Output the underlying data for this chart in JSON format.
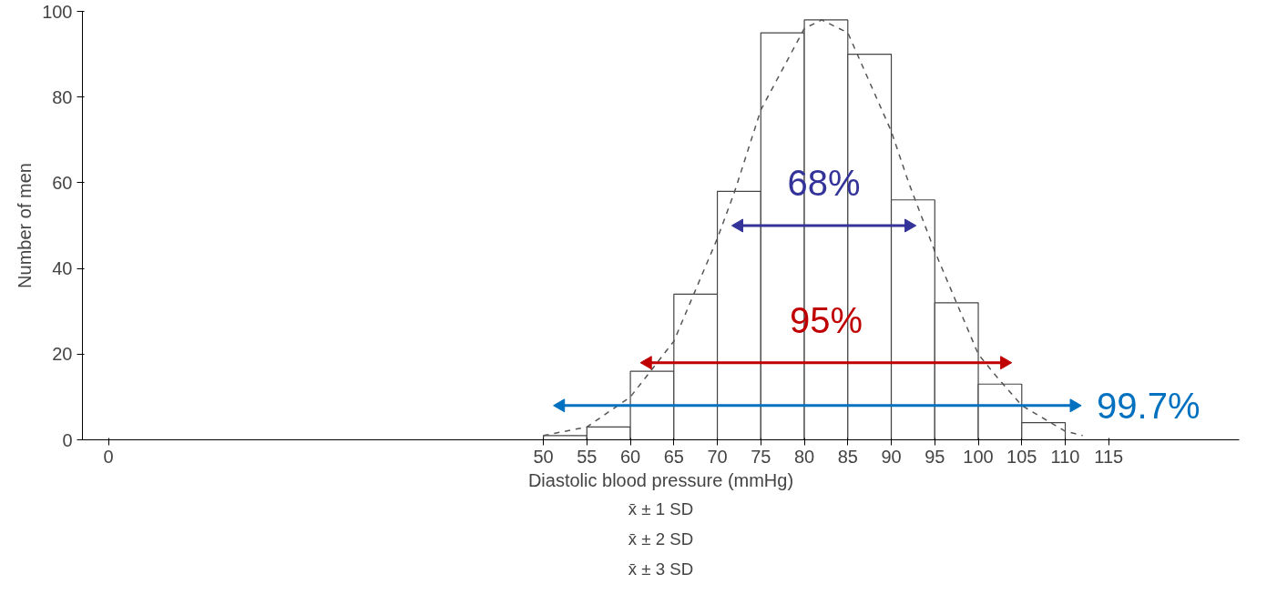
{
  "chart_data": {
    "type": "histogram",
    "xlabel": "Diastolic blood pressure (mmHg)",
    "ylabel": "Number of men",
    "bins": [
      50,
      55,
      60,
      65,
      70,
      75,
      80,
      85,
      90,
      95,
      100,
      105,
      110
    ],
    "values": [
      1,
      3,
      16,
      34,
      58,
      95,
      98,
      90,
      56,
      32,
      13,
      4
    ],
    "color": "#ffffff",
    "xlim": [
      -3,
      130
    ],
    "ylim": [
      0,
      100
    ],
    "xticks": [
      0,
      50,
      55,
      60,
      65,
      70,
      75,
      80,
      85,
      90,
      95,
      100,
      105,
      110,
      115
    ],
    "yticks": [
      0,
      20,
      40,
      60,
      80,
      100
    ],
    "grid": false,
    "series": [
      {
        "type": "line",
        "line_style": "dashed",
        "color": "#555555",
        "x": [
          50,
          55,
          60,
          65,
          70,
          72,
          75,
          80,
          82,
          85,
          90,
          92,
          95,
          100,
          102,
          105,
          110,
          112
        ],
        "values": [
          1,
          3,
          10,
          23,
          47,
          58,
          77,
          96,
          98,
          95,
          72,
          60,
          44,
          20,
          15,
          8,
          2,
          1
        ]
      },
      {
        "type": "line",
        "line_style": "solid",
        "marker": "triangle",
        "name": "68%",
        "color": "#333399",
        "x": [
          72.5,
          92
        ],
        "values": [
          50,
          50
        ]
      },
      {
        "type": "line",
        "line_style": "solid",
        "marker": "triangle",
        "name": "95%",
        "color": "#c00000",
        "x": [
          62,
          103
        ],
        "values": [
          18,
          18
        ]
      },
      {
        "type": "line",
        "line_style": "solid",
        "marker": "triangle",
        "name": "99.7%",
        "color": "#0070c0",
        "x": [
          52,
          111
        ],
        "values": [
          8,
          8
        ]
      }
    ],
    "annotations": [
      "x̄ ± 1 SD",
      "x̄ ± 2 SD",
      "x̄ ± 3 SD"
    ]
  }
}
